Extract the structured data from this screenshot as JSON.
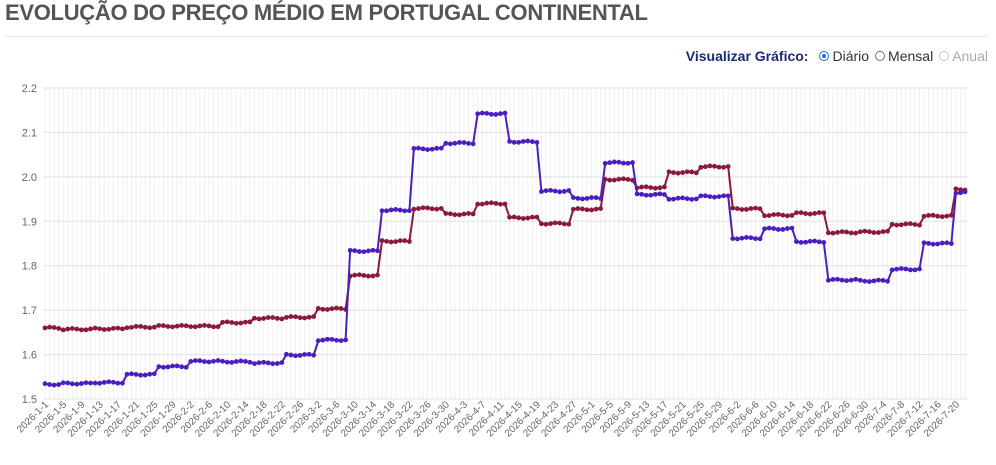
{
  "header": {
    "title": "EVOLUÇÃO DO PREÇO MÉDIO EM PORTUGAL CONTINENTAL"
  },
  "controls": {
    "label": "Visualizar Gráfico:",
    "options": [
      {
        "label": "Diário",
        "selected": true,
        "enabled": true
      },
      {
        "label": "Mensal",
        "selected": false,
        "enabled": true
      },
      {
        "label": "Anual",
        "selected": false,
        "enabled": false
      }
    ]
  },
  "chart_data": {
    "type": "line",
    "title": "",
    "xlabel": "",
    "ylabel": "",
    "ylim": [
      1.5,
      2.2
    ],
    "y_ticks": [
      "1.5",
      "1.6",
      "1.7",
      "1.8",
      "1.9",
      "2.0",
      "2.1",
      "2.2"
    ],
    "grid": true,
    "x_start": "2026-1-1",
    "x_end": "2026-7-22",
    "x_tick_labels": [
      "2026-1-1",
      "2026-1-5",
      "2026-1-9",
      "2026-1-13",
      "2026-1-17",
      "2026-1-21",
      "2026-1-25",
      "2026-1-29",
      "2026-2-2",
      "2026-2-6",
      "2026-2-10",
      "2026-2-14",
      "2026-2-18",
      "2026-2-22",
      "2026-2-26",
      "2026-3-2",
      "2026-3-6",
      "2026-3-10",
      "2026-3-14",
      "2026-3-18",
      "2026-3-22",
      "2026-3-26",
      "2026-3-30",
      "2026-4-3",
      "2026-4-7",
      "2026-4-11",
      "2026-4-15",
      "2026-4-19",
      "2026-4-23",
      "2026-4-27",
      "2026-5-1",
      "2026-5-5",
      "2026-5-9",
      "2026-5-13",
      "2026-5-17",
      "2026-5-21",
      "2026-5-25",
      "2026-5-29",
      "2026-6-2",
      "2026-6-6",
      "2026-6-10",
      "2026-6-14",
      "2026-6-18",
      "2026-6-22",
      "2026-6-26",
      "2026-6-30",
      "2026-7-4",
      "2026-7-8",
      "2026-7-12",
      "2026-7-16",
      "2026-7-20"
    ],
    "series": [
      {
        "color": "#8b1a3a",
        "steps": [
          [
            "2026-1-1",
            1.66
          ],
          [
            "2026-1-5",
            1.657
          ],
          [
            "2026-1-12",
            1.658
          ],
          [
            "2026-1-19",
            1.662
          ],
          [
            "2026-1-26",
            1.664
          ],
          [
            "2026-2-2",
            1.664
          ],
          [
            "2026-2-9",
            1.672
          ],
          [
            "2026-2-16",
            1.682
          ],
          [
            "2026-2-23",
            1.684
          ],
          [
            "2026-3-2",
            1.703
          ],
          [
            "2026-3-9",
            1.778
          ],
          [
            "2026-3-16",
            1.855
          ],
          [
            "2026-3-23",
            1.929
          ],
          [
            "2026-3-30",
            1.916
          ],
          [
            "2026-4-6",
            1.94
          ],
          [
            "2026-4-13",
            1.908
          ],
          [
            "2026-4-20",
            1.895
          ],
          [
            "2026-4-27",
            1.927
          ],
          [
            "2026-5-4",
            1.994
          ],
          [
            "2026-5-11",
            1.976
          ],
          [
            "2026-5-18",
            2.01
          ],
          [
            "2026-5-25",
            2.023
          ],
          [
            "2026-6-1",
            1.928
          ],
          [
            "2026-6-8",
            1.914
          ],
          [
            "2026-6-15",
            1.918
          ],
          [
            "2026-6-22",
            1.875
          ],
          [
            "2026-6-29",
            1.876
          ],
          [
            "2026-7-6",
            1.893
          ],
          [
            "2026-7-13",
            1.912
          ],
          [
            "2026-7-20",
            1.972
          ]
        ]
      },
      {
        "color": "#4b1fbf",
        "steps": [
          [
            "2026-1-1",
            1.533
          ],
          [
            "2026-1-5",
            1.535
          ],
          [
            "2026-1-12",
            1.537
          ],
          [
            "2026-1-19",
            1.555
          ],
          [
            "2026-1-26",
            1.573
          ],
          [
            "2026-2-2",
            1.585
          ],
          [
            "2026-2-9",
            1.584
          ],
          [
            "2026-2-16",
            1.581
          ],
          [
            "2026-2-23",
            1.599
          ],
          [
            "2026-3-2",
            1.633
          ],
          [
            "2026-3-9",
            1.833
          ],
          [
            "2026-3-16",
            1.925
          ],
          [
            "2026-3-23",
            2.063
          ],
          [
            "2026-3-30",
            2.076
          ],
          [
            "2026-4-6",
            2.142
          ],
          [
            "2026-4-13",
            2.079
          ],
          [
            "2026-4-20",
            1.968
          ],
          [
            "2026-4-27",
            1.952
          ],
          [
            "2026-5-4",
            2.032
          ],
          [
            "2026-5-11",
            1.96
          ],
          [
            "2026-5-18",
            1.951
          ],
          [
            "2026-5-25",
            1.956
          ],
          [
            "2026-6-1",
            1.862
          ],
          [
            "2026-6-8",
            1.883
          ],
          [
            "2026-6-15",
            1.854
          ],
          [
            "2026-6-22",
            1.768
          ],
          [
            "2026-6-29",
            1.766
          ],
          [
            "2026-7-6",
            1.792
          ],
          [
            "2026-7-13",
            1.85
          ],
          [
            "2026-7-20",
            1.965
          ]
        ]
      }
    ]
  }
}
